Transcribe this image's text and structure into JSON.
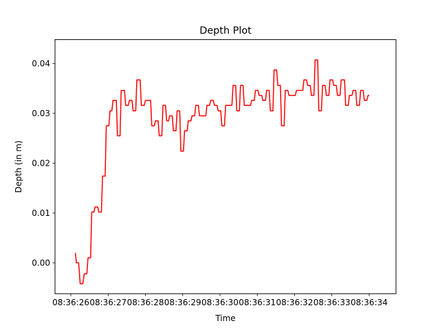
{
  "chart_data": {
    "type": "line",
    "title": "Depth Plot",
    "xlabel": "Time",
    "ylabel": "Depth (in m)",
    "x_ticks": [
      {
        "t": 0,
        "label": "08:36:26"
      },
      {
        "t": 1,
        "label": "08:36:27"
      },
      {
        "t": 2,
        "label": "08:36:28"
      },
      {
        "t": 3,
        "label": "08:36:29"
      },
      {
        "t": 4,
        "label": "08:36:30"
      },
      {
        "t": 5,
        "label": "08:36:31"
      },
      {
        "t": 6,
        "label": "08:36:32"
      },
      {
        "t": 7,
        "label": "08:36:33"
      },
      {
        "t": 8,
        "label": "08:36:34"
      }
    ],
    "y_ticks": [
      {
        "v": 0.0,
        "label": "0.00"
      },
      {
        "v": 0.01,
        "label": "0.01"
      },
      {
        "v": 0.02,
        "label": "0.02"
      },
      {
        "v": 0.03,
        "label": "0.03"
      },
      {
        "v": 0.04,
        "label": "0.04"
      }
    ],
    "xlim": [
      -0.425,
      8.72
    ],
    "ylim": [
      -0.0062,
      0.0448
    ],
    "grid": false,
    "series": [
      {
        "color": "#ff0000",
        "points": [
          [
            0.12,
            0.002
          ],
          [
            0.15,
            0.0
          ],
          [
            0.21,
            0.0
          ],
          [
            0.25,
            -0.0042
          ],
          [
            0.32,
            -0.0042
          ],
          [
            0.36,
            -0.0022
          ],
          [
            0.43,
            -0.0022
          ],
          [
            0.46,
            0.001
          ],
          [
            0.53,
            0.001
          ],
          [
            0.56,
            0.0102
          ],
          [
            0.62,
            0.0102
          ],
          [
            0.65,
            0.0112
          ],
          [
            0.72,
            0.0112
          ],
          [
            0.75,
            0.0102
          ],
          [
            0.82,
            0.0102
          ],
          [
            0.85,
            0.0174
          ],
          [
            0.92,
            0.0174
          ],
          [
            0.95,
            0.0275
          ],
          [
            1.02,
            0.0275
          ],
          [
            1.05,
            0.0305
          ],
          [
            1.1,
            0.0305
          ],
          [
            1.13,
            0.0326
          ],
          [
            1.22,
            0.0326
          ],
          [
            1.25,
            0.0255
          ],
          [
            1.32,
            0.0255
          ],
          [
            1.35,
            0.0346
          ],
          [
            1.44,
            0.0346
          ],
          [
            1.47,
            0.0316
          ],
          [
            1.54,
            0.0316
          ],
          [
            1.57,
            0.0326
          ],
          [
            1.64,
            0.0326
          ],
          [
            1.67,
            0.0305
          ],
          [
            1.74,
            0.0305
          ],
          [
            1.77,
            0.0367
          ],
          [
            1.86,
            0.0367
          ],
          [
            1.89,
            0.0316
          ],
          [
            1.97,
            0.0316
          ],
          [
            2.0,
            0.0326
          ],
          [
            2.14,
            0.0326
          ],
          [
            2.17,
            0.0275
          ],
          [
            2.24,
            0.0275
          ],
          [
            2.27,
            0.0285
          ],
          [
            2.34,
            0.0285
          ],
          [
            2.37,
            0.0255
          ],
          [
            2.44,
            0.0255
          ],
          [
            2.47,
            0.0316
          ],
          [
            2.54,
            0.0316
          ],
          [
            2.57,
            0.0285
          ],
          [
            2.62,
            0.0285
          ],
          [
            2.65,
            0.0295
          ],
          [
            2.72,
            0.0295
          ],
          [
            2.75,
            0.0265
          ],
          [
            2.82,
            0.0265
          ],
          [
            2.85,
            0.0305
          ],
          [
            2.92,
            0.0305
          ],
          [
            2.95,
            0.0224
          ],
          [
            3.02,
            0.0224
          ],
          [
            3.05,
            0.0265
          ],
          [
            3.12,
            0.0265
          ],
          [
            3.15,
            0.0285
          ],
          [
            3.22,
            0.0285
          ],
          [
            3.25,
            0.0295
          ],
          [
            3.32,
            0.0295
          ],
          [
            3.35,
            0.0316
          ],
          [
            3.42,
            0.0316
          ],
          [
            3.45,
            0.0295
          ],
          [
            3.62,
            0.0295
          ],
          [
            3.65,
            0.0316
          ],
          [
            3.72,
            0.0316
          ],
          [
            3.75,
            0.0326
          ],
          [
            3.82,
            0.0326
          ],
          [
            3.85,
            0.0316
          ],
          [
            3.92,
            0.0316
          ],
          [
            3.95,
            0.0305
          ],
          [
            4.02,
            0.0305
          ],
          [
            4.05,
            0.0275
          ],
          [
            4.12,
            0.0275
          ],
          [
            4.15,
            0.0316
          ],
          [
            4.32,
            0.0316
          ],
          [
            4.35,
            0.0356
          ],
          [
            4.42,
            0.0356
          ],
          [
            4.45,
            0.0305
          ],
          [
            4.52,
            0.0305
          ],
          [
            4.55,
            0.0356
          ],
          [
            4.62,
            0.0356
          ],
          [
            4.65,
            0.0316
          ],
          [
            4.82,
            0.0316
          ],
          [
            4.85,
            0.0326
          ],
          [
            4.92,
            0.0326
          ],
          [
            4.95,
            0.0346
          ],
          [
            5.02,
            0.0346
          ],
          [
            5.05,
            0.0336
          ],
          [
            5.12,
            0.0336
          ],
          [
            5.15,
            0.0326
          ],
          [
            5.22,
            0.0326
          ],
          [
            5.25,
            0.0346
          ],
          [
            5.32,
            0.0346
          ],
          [
            5.35,
            0.0305
          ],
          [
            5.42,
            0.0305
          ],
          [
            5.45,
            0.0387
          ],
          [
            5.52,
            0.0387
          ],
          [
            5.55,
            0.0356
          ],
          [
            5.62,
            0.0356
          ],
          [
            5.65,
            0.0275
          ],
          [
            5.72,
            0.0275
          ],
          [
            5.75,
            0.0346
          ],
          [
            5.82,
            0.0346
          ],
          [
            5.85,
            0.0336
          ],
          [
            6.02,
            0.0336
          ],
          [
            6.05,
            0.0346
          ],
          [
            6.22,
            0.0346
          ],
          [
            6.25,
            0.0367
          ],
          [
            6.32,
            0.0367
          ],
          [
            6.35,
            0.0356
          ],
          [
            6.42,
            0.0356
          ],
          [
            6.45,
            0.0336
          ],
          [
            6.52,
            0.0336
          ],
          [
            6.55,
            0.0407
          ],
          [
            6.62,
            0.0407
          ],
          [
            6.65,
            0.0305
          ],
          [
            6.72,
            0.0305
          ],
          [
            6.75,
            0.0356
          ],
          [
            6.82,
            0.0356
          ],
          [
            6.85,
            0.0336
          ],
          [
            6.92,
            0.0336
          ],
          [
            6.95,
            0.0367
          ],
          [
            7.02,
            0.0367
          ],
          [
            7.05,
            0.0356
          ],
          [
            7.12,
            0.0356
          ],
          [
            7.15,
            0.0336
          ],
          [
            7.22,
            0.0336
          ],
          [
            7.25,
            0.0367
          ],
          [
            7.34,
            0.0367
          ],
          [
            7.37,
            0.0316
          ],
          [
            7.44,
            0.0316
          ],
          [
            7.47,
            0.0336
          ],
          [
            7.54,
            0.0336
          ],
          [
            7.57,
            0.0346
          ],
          [
            7.64,
            0.0346
          ],
          [
            7.67,
            0.0316
          ],
          [
            7.74,
            0.0316
          ],
          [
            7.77,
            0.0346
          ],
          [
            7.84,
            0.0346
          ],
          [
            7.87,
            0.0326
          ],
          [
            7.94,
            0.0326
          ],
          [
            7.97,
            0.0336
          ],
          [
            8.0,
            0.0336
          ]
        ]
      }
    ]
  }
}
